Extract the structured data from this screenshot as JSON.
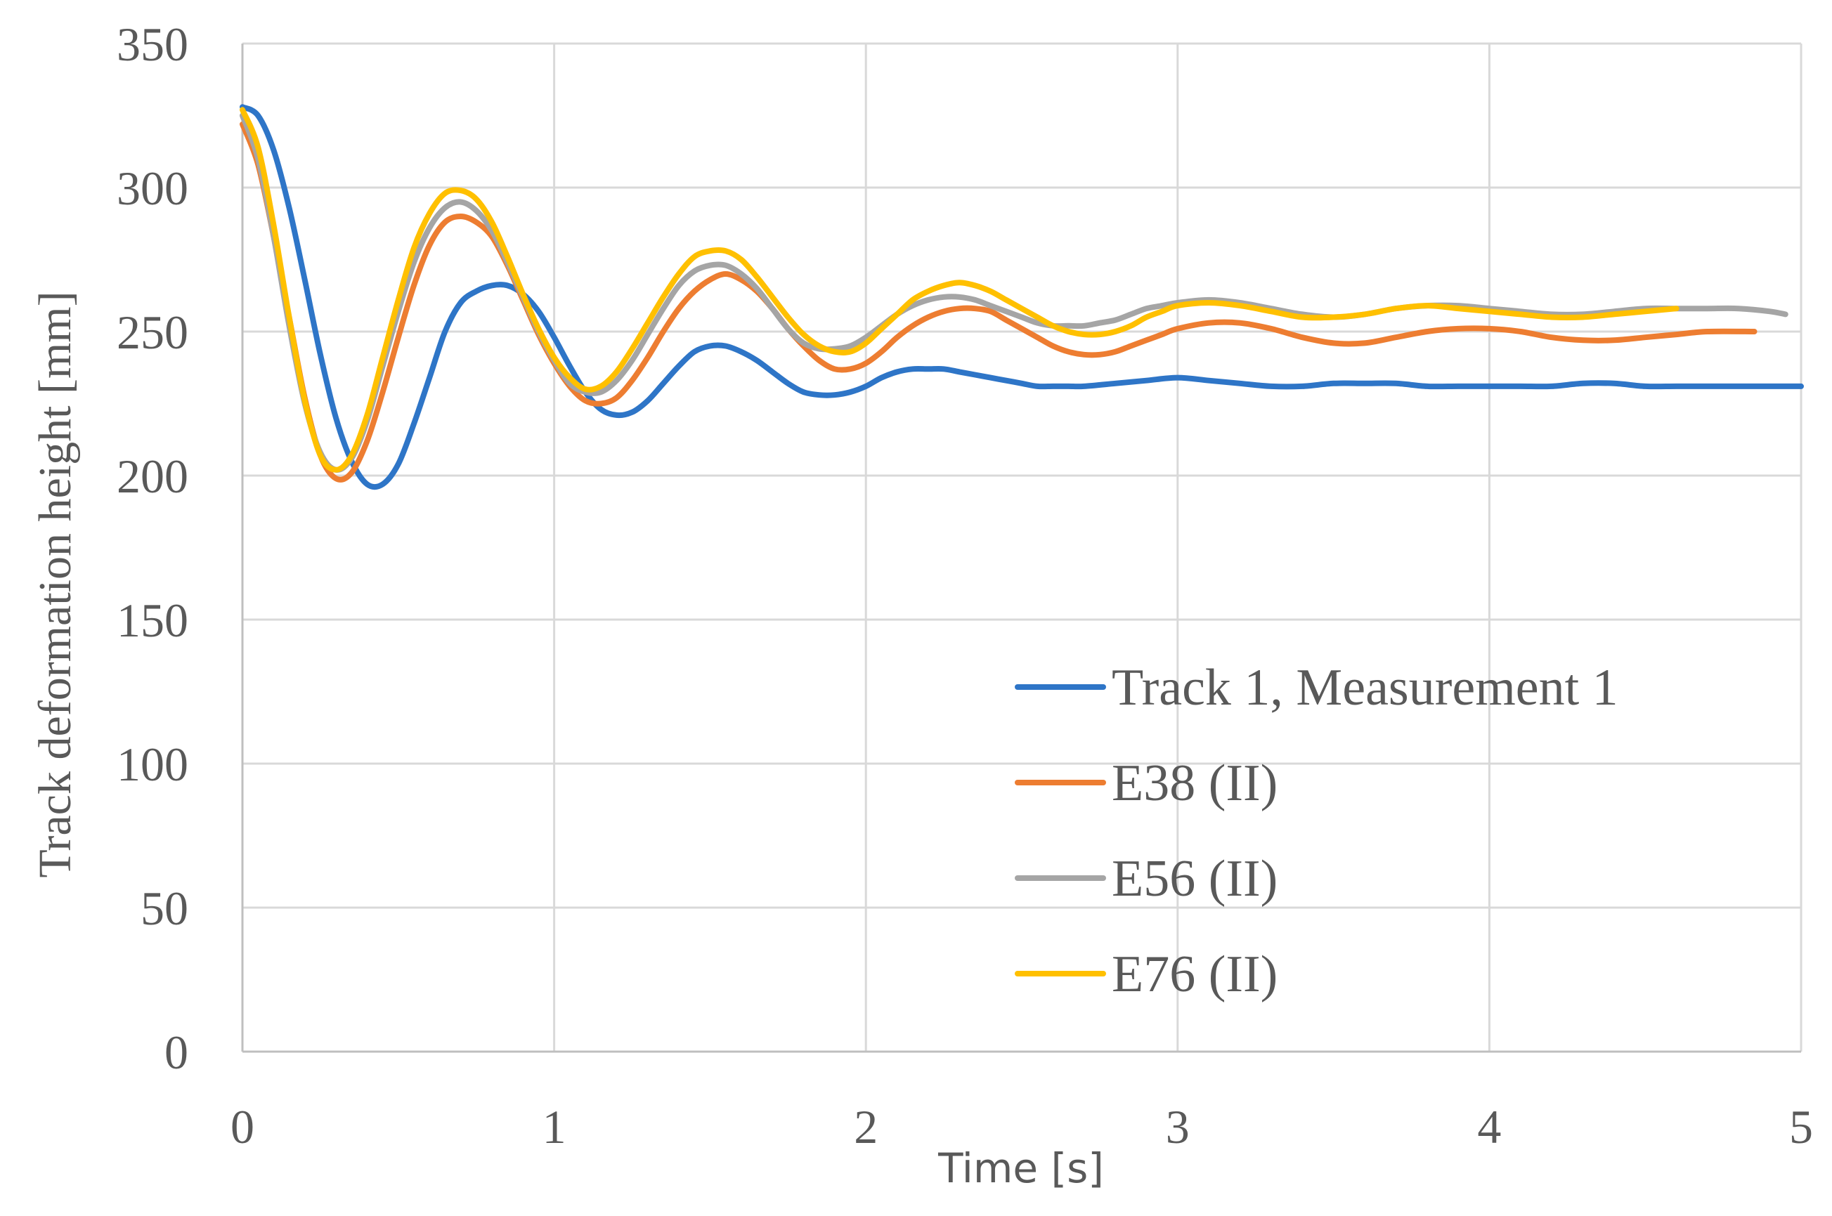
{
  "chart_data": {
    "type": "line",
    "title": "",
    "xlabel": "Time [s]",
    "ylabel": "Track deformation height [mm]",
    "xlim": [
      0,
      5
    ],
    "ylim": [
      0,
      350
    ],
    "x_ticks": [
      "0",
      "1",
      "2",
      "3",
      "4",
      "5"
    ],
    "y_ticks": [
      "0",
      "50",
      "100",
      "150",
      "200",
      "250",
      "300",
      "350"
    ],
    "grid": true,
    "legend_position": "right-middle",
    "series": [
      {
        "name": "Track 1, Measurement 1",
        "color": "#2e75c7",
        "x": [
          0,
          0.05,
          0.1,
          0.15,
          0.2,
          0.25,
          0.3,
          0.35,
          0.4,
          0.45,
          0.5,
          0.55,
          0.6,
          0.65,
          0.7,
          0.75,
          0.8,
          0.85,
          0.9,
          0.95,
          1.0,
          1.05,
          1.1,
          1.15,
          1.2,
          1.25,
          1.3,
          1.35,
          1.4,
          1.45,
          1.5,
          1.55,
          1.6,
          1.65,
          1.7,
          1.75,
          1.8,
          1.85,
          1.9,
          1.95,
          2.0,
          2.05,
          2.1,
          2.15,
          2.2,
          2.25,
          2.3,
          2.35,
          2.4,
          2.45,
          2.5,
          2.55,
          2.6,
          2.65,
          2.7,
          2.8,
          2.9,
          3.0,
          3.1,
          3.2,
          3.3,
          3.4,
          3.5,
          3.6,
          3.7,
          3.8,
          3.9,
          4.0,
          4.1,
          4.2,
          4.3,
          4.4,
          4.5,
          4.6,
          4.7,
          4.8,
          4.9,
          5.0
        ],
        "values": [
          328,
          325,
          313,
          293,
          268,
          242,
          220,
          205,
          197,
          197,
          204,
          218,
          234,
          250,
          260,
          264,
          266,
          266,
          263,
          257,
          248,
          238,
          229,
          223,
          221,
          222,
          226,
          232,
          238,
          243,
          245,
          245,
          243,
          240,
          236,
          232,
          229,
          228,
          228,
          229,
          231,
          234,
          236,
          237,
          237,
          237,
          236,
          235,
          234,
          233,
          232,
          231,
          231,
          231,
          231,
          232,
          233,
          234,
          233,
          232,
          231,
          231,
          232,
          232,
          232,
          231,
          231,
          231,
          231,
          231,
          232,
          232,
          231,
          231,
          231,
          231,
          231,
          231
        ]
      },
      {
        "name": "E38 (II)",
        "color": "#ed7d31",
        "x": [
          0,
          0.05,
          0.1,
          0.15,
          0.2,
          0.25,
          0.3,
          0.35,
          0.4,
          0.45,
          0.5,
          0.55,
          0.6,
          0.65,
          0.7,
          0.75,
          0.8,
          0.85,
          0.9,
          0.95,
          1.0,
          1.05,
          1.1,
          1.15,
          1.2,
          1.25,
          1.3,
          1.35,
          1.4,
          1.45,
          1.5,
          1.55,
          1.6,
          1.65,
          1.7,
          1.75,
          1.8,
          1.85,
          1.9,
          1.95,
          2.0,
          2.05,
          2.1,
          2.15,
          2.2,
          2.25,
          2.3,
          2.35,
          2.4,
          2.45,
          2.5,
          2.55,
          2.6,
          2.65,
          2.7,
          2.75,
          2.8,
          2.85,
          2.9,
          2.95,
          3.0,
          3.1,
          3.2,
          3.3,
          3.4,
          3.5,
          3.6,
          3.7,
          3.8,
          3.9,
          4.0,
          4.1,
          4.2,
          4.3,
          4.4,
          4.5,
          4.6,
          4.7,
          4.85
        ],
        "values": [
          322,
          308,
          283,
          255,
          227,
          207,
          199,
          201,
          212,
          229,
          248,
          266,
          280,
          288,
          290,
          288,
          283,
          273,
          261,
          249,
          239,
          231,
          226,
          225,
          227,
          233,
          241,
          250,
          258,
          264,
          268,
          270,
          268,
          264,
          258,
          251,
          245,
          240,
          237,
          237,
          239,
          243,
          248,
          252,
          255,
          257,
          258,
          258,
          257,
          254,
          251,
          248,
          245,
          243,
          242,
          242,
          243,
          245,
          247,
          249,
          251,
          253,
          253,
          251,
          248,
          246,
          246,
          248,
          250,
          251,
          251,
          250,
          248,
          247,
          247,
          248,
          249,
          250,
          250
        ]
      },
      {
        "name": "E56 (II)",
        "color": "#a5a5a5",
        "x": [
          0,
          0.05,
          0.1,
          0.15,
          0.2,
          0.25,
          0.3,
          0.35,
          0.4,
          0.45,
          0.5,
          0.55,
          0.6,
          0.65,
          0.7,
          0.75,
          0.8,
          0.85,
          0.9,
          0.95,
          1.0,
          1.05,
          1.1,
          1.15,
          1.2,
          1.25,
          1.3,
          1.35,
          1.4,
          1.45,
          1.5,
          1.55,
          1.6,
          1.65,
          1.7,
          1.75,
          1.8,
          1.85,
          1.9,
          1.95,
          2.0,
          2.05,
          2.1,
          2.15,
          2.2,
          2.25,
          2.3,
          2.35,
          2.4,
          2.45,
          2.5,
          2.55,
          2.6,
          2.65,
          2.7,
          2.75,
          2.8,
          2.85,
          2.9,
          2.95,
          3.0,
          3.1,
          3.2,
          3.3,
          3.4,
          3.5,
          3.6,
          3.7,
          3.8,
          3.9,
          4.0,
          4.1,
          4.2,
          4.3,
          4.4,
          4.5,
          4.6,
          4.7,
          4.8,
          4.9,
          4.95
        ],
        "values": [
          325,
          310,
          283,
          252,
          225,
          208,
          202,
          206,
          219,
          238,
          257,
          274,
          286,
          293,
          295,
          292,
          285,
          274,
          262,
          250,
          240,
          232,
          229,
          229,
          233,
          240,
          249,
          258,
          266,
          271,
          273,
          273,
          270,
          265,
          258,
          251,
          246,
          244,
          244,
          245,
          248,
          252,
          256,
          259,
          261,
          262,
          262,
          261,
          259,
          257,
          255,
          253,
          252,
          252,
          252,
          253,
          254,
          256,
          258,
          259,
          260,
          261,
          260,
          258,
          256,
          255,
          256,
          258,
          259,
          259,
          258,
          257,
          256,
          256,
          257,
          258,
          258,
          258,
          258,
          257,
          256
        ]
      },
      {
        "name": "E76 (II)",
        "color": "#ffc000",
        "x": [
          0,
          0.05,
          0.1,
          0.15,
          0.2,
          0.25,
          0.3,
          0.35,
          0.4,
          0.45,
          0.5,
          0.55,
          0.6,
          0.65,
          0.7,
          0.75,
          0.8,
          0.85,
          0.9,
          0.95,
          1.0,
          1.05,
          1.1,
          1.15,
          1.2,
          1.25,
          1.3,
          1.35,
          1.4,
          1.45,
          1.5,
          1.55,
          1.6,
          1.65,
          1.7,
          1.75,
          1.8,
          1.85,
          1.9,
          1.95,
          2.0,
          2.05,
          2.1,
          2.15,
          2.2,
          2.25,
          2.3,
          2.35,
          2.4,
          2.45,
          2.5,
          2.55,
          2.6,
          2.65,
          2.7,
          2.75,
          2.8,
          2.85,
          2.9,
          2.95,
          3.0,
          3.1,
          3.2,
          3.3,
          3.4,
          3.5,
          3.6,
          3.7,
          3.8,
          3.9,
          4.0,
          4.1,
          4.2,
          4.3,
          4.4,
          4.5,
          4.6
        ],
        "values": [
          327,
          314,
          287,
          255,
          226,
          207,
          202,
          207,
          221,
          241,
          261,
          279,
          291,
          298,
          299,
          296,
          288,
          276,
          263,
          251,
          241,
          234,
          230,
          231,
          236,
          244,
          253,
          262,
          270,
          276,
          278,
          278,
          275,
          269,
          262,
          255,
          249,
          245,
          243,
          243,
          246,
          251,
          256,
          261,
          264,
          266,
          267,
          266,
          264,
          261,
          258,
          255,
          252,
          250,
          249,
          249,
          250,
          252,
          255,
          257,
          259,
          260,
          259,
          257,
          255,
          255,
          256,
          258,
          259,
          258,
          257,
          256,
          255,
          255,
          256,
          257,
          258
        ]
      }
    ]
  }
}
